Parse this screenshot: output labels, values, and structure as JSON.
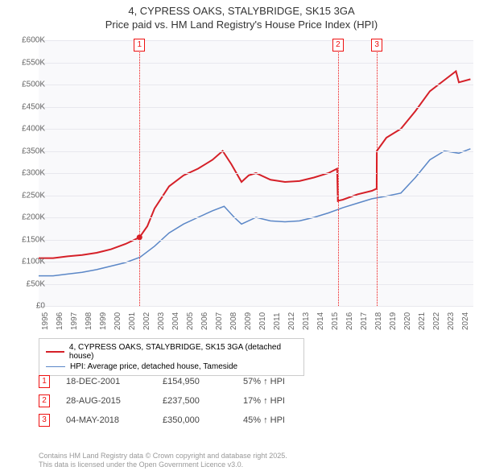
{
  "title_line1": "4, CYPRESS OAKS, STALYBRIDGE, SK15 3GA",
  "title_line2": "Price paid vs. HM Land Registry's House Price Index (HPI)",
  "chart": {
    "type": "line",
    "background_color": "#f9f9fb",
    "grid_color": "#e8e8ee",
    "ylim": [
      0,
      600000
    ],
    "ytick_step": 50000,
    "y_labels": [
      "£0",
      "£50K",
      "£100K",
      "£150K",
      "£200K",
      "£250K",
      "£300K",
      "£350K",
      "£400K",
      "£450K",
      "£500K",
      "£550K",
      "£600K"
    ],
    "xlim": [
      1995,
      2025
    ],
    "x_labels": [
      "1995",
      "1996",
      "1997",
      "1998",
      "1999",
      "2000",
      "2001",
      "2002",
      "2003",
      "2004",
      "2005",
      "2006",
      "2007",
      "2008",
      "2009",
      "2010",
      "2011",
      "2012",
      "2013",
      "2014",
      "2015",
      "2016",
      "2017",
      "2018",
      "2019",
      "2020",
      "2021",
      "2022",
      "2023",
      "2024"
    ],
    "series": [
      {
        "name": "property",
        "color": "#d52028",
        "width": 2,
        "data": [
          [
            1995,
            108000
          ],
          [
            1996,
            108000
          ],
          [
            1997,
            112000
          ],
          [
            1998,
            115000
          ],
          [
            1999,
            120000
          ],
          [
            2000,
            128000
          ],
          [
            2001,
            140000
          ],
          [
            2001.96,
            154950
          ],
          [
            2002.5,
            180000
          ],
          [
            2003,
            220000
          ],
          [
            2004,
            270000
          ],
          [
            2005,
            295000
          ],
          [
            2006,
            310000
          ],
          [
            2007,
            330000
          ],
          [
            2007.7,
            350000
          ],
          [
            2008.3,
            320000
          ],
          [
            2009,
            280000
          ],
          [
            2009.5,
            295000
          ],
          [
            2010,
            300000
          ],
          [
            2011,
            285000
          ],
          [
            2012,
            280000
          ],
          [
            2013,
            282000
          ],
          [
            2014,
            290000
          ],
          [
            2015,
            300000
          ],
          [
            2015.6,
            310000
          ],
          [
            2015.65,
            235000
          ],
          [
            2015.66,
            237500
          ],
          [
            2016,
            240000
          ],
          [
            2017,
            252000
          ],
          [
            2018,
            260000
          ],
          [
            2018.33,
            265000
          ],
          [
            2018.34,
            350000
          ],
          [
            2019,
            380000
          ],
          [
            2020,
            400000
          ],
          [
            2021,
            440000
          ],
          [
            2022,
            485000
          ],
          [
            2023,
            510000
          ],
          [
            2023.8,
            530000
          ],
          [
            2024,
            505000
          ],
          [
            2024.8,
            512000
          ]
        ],
        "markers": [
          [
            2001.96,
            154950
          ]
        ]
      },
      {
        "name": "hpi",
        "color": "#5b87c7",
        "width": 1.5,
        "data": [
          [
            1995,
            68000
          ],
          [
            1996,
            68000
          ],
          [
            1997,
            72000
          ],
          [
            1998,
            76000
          ],
          [
            1999,
            82000
          ],
          [
            2000,
            90000
          ],
          [
            2001,
            98000
          ],
          [
            2002,
            110000
          ],
          [
            2003,
            135000
          ],
          [
            2004,
            165000
          ],
          [
            2005,
            185000
          ],
          [
            2006,
            200000
          ],
          [
            2007,
            215000
          ],
          [
            2007.8,
            225000
          ],
          [
            2008.5,
            200000
          ],
          [
            2009,
            185000
          ],
          [
            2010,
            200000
          ],
          [
            2011,
            192000
          ],
          [
            2012,
            190000
          ],
          [
            2013,
            192000
          ],
          [
            2014,
            200000
          ],
          [
            2015,
            210000
          ],
          [
            2016,
            222000
          ],
          [
            2017,
            232000
          ],
          [
            2018,
            242000
          ],
          [
            2019,
            248000
          ],
          [
            2020,
            255000
          ],
          [
            2021,
            290000
          ],
          [
            2022,
            330000
          ],
          [
            2023,
            350000
          ],
          [
            2024,
            345000
          ],
          [
            2024.8,
            355000
          ]
        ]
      }
    ],
    "event_markers": [
      {
        "n": "1",
        "x": 2001.96
      },
      {
        "n": "2",
        "x": 2015.66
      },
      {
        "n": "3",
        "x": 2018.34
      }
    ]
  },
  "legend": {
    "items": [
      {
        "color": "#d52028",
        "width": 2,
        "label": "4, CYPRESS OAKS, STALYBRIDGE, SK15 3GA (detached house)"
      },
      {
        "color": "#5b87c7",
        "width": 1.5,
        "label": "HPI: Average price, detached house, Tameside"
      }
    ]
  },
  "transactions": [
    {
      "n": "1",
      "date": "18-DEC-2001",
      "price": "£154,950",
      "pct": "57% ↑ HPI"
    },
    {
      "n": "2",
      "date": "28-AUG-2015",
      "price": "£237,500",
      "pct": "17% ↑ HPI"
    },
    {
      "n": "3",
      "date": "04-MAY-2018",
      "price": "£350,000",
      "pct": "45% ↑ HPI"
    }
  ],
  "footer_line1": "Contains HM Land Registry data © Crown copyright and database right 2025.",
  "footer_line2": "This data is licensed under the Open Government Licence v3.0."
}
